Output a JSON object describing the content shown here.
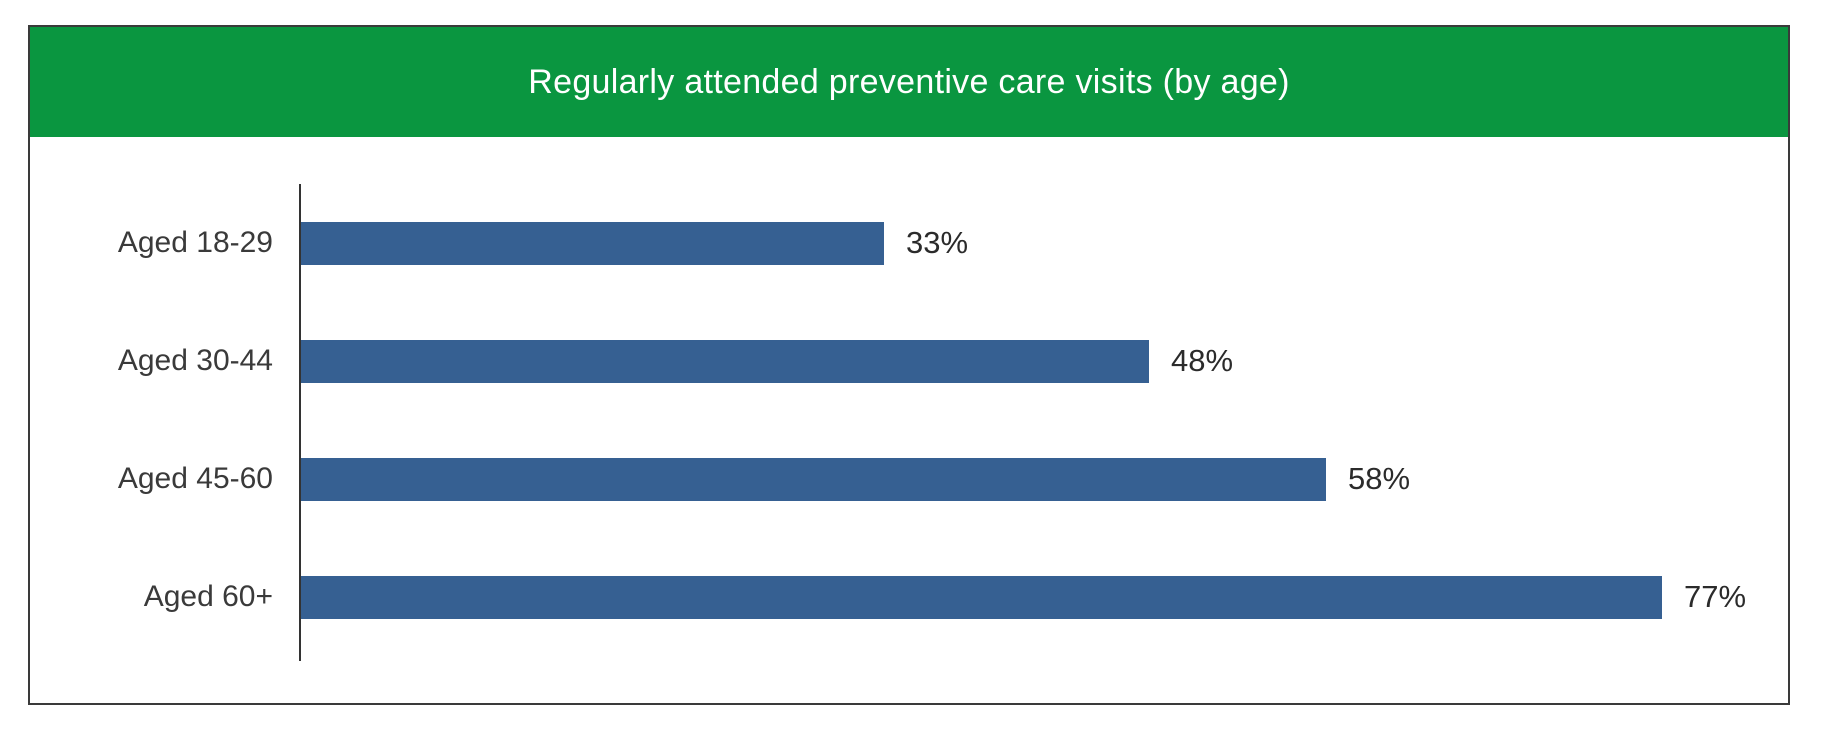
{
  "header": {
    "title": "Regularly attended preventive care visits (by age)",
    "bg_color": "#0A9640",
    "text_color": "#FFFFFF"
  },
  "chart_data": {
    "type": "bar",
    "orientation": "horizontal",
    "title": "Regularly attended preventive care visits (by age)",
    "categories": [
      "Aged 18-29",
      "Aged 30-44",
      "Aged 45-60",
      "Aged 60+"
    ],
    "values": [
      33,
      48,
      58,
      77
    ],
    "value_labels": [
      "33%",
      "48%",
      "58%",
      "77%"
    ],
    "unit": "%",
    "xlim": [
      0,
      100
    ],
    "grid": false,
    "legend": false,
    "bar_color": "#366092",
    "axis_color": "#333333",
    "category_label_color": "#3A3A3A",
    "value_label_color": "#2B2B2B"
  }
}
